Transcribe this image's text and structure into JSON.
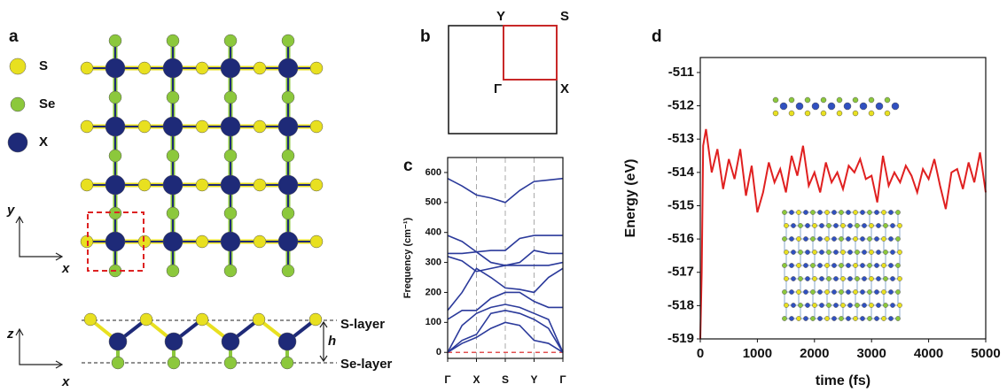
{
  "panel_a": {
    "letter": "a",
    "legend": [
      "S",
      "Se",
      "X"
    ],
    "top_axes": [
      "y",
      "x"
    ],
    "side_axes": [
      "z",
      "x"
    ],
    "layers": [
      "S-layer",
      "Se-layer"
    ],
    "height": "h"
  },
  "panel_b": {
    "letter": "b",
    "points": [
      "Y",
      "S",
      "Γ",
      "X"
    ]
  },
  "chart_data": [
    {
      "type": "line",
      "panel": "c",
      "y_label": "Frequency (cm⁻¹)",
      "x": [
        0,
        0.5,
        1,
        1.5,
        2,
        2.5,
        3,
        3.5,
        4
      ],
      "xlim": [
        0,
        4
      ],
      "xticks": [
        {
          "value": 0,
          "label": "Γ"
        },
        {
          "value": 1,
          "label": "X"
        },
        {
          "value": 2,
          "label": "S"
        },
        {
          "value": 3,
          "label": "Y"
        },
        {
          "value": 4,
          "label": "Γ"
        }
      ],
      "xgrid": true,
      "ylim": [
        -20,
        650
      ],
      "yticks": [
        0,
        100,
        200,
        300,
        400,
        500,
        600
      ],
      "reference_line": {
        "y": 0,
        "color": "#e05050"
      },
      "series": [
        {
          "color": "#2b3a9b",
          "values": [
            580,
            555,
            525,
            515,
            500,
            540,
            570,
            575,
            580
          ]
        },
        {
          "color": "#2b3a9b",
          "values": [
            390,
            370,
            335,
            340,
            340,
            380,
            390,
            390,
            390
          ]
        },
        {
          "color": "#2b3a9b",
          "values": [
            330,
            330,
            335,
            300,
            290,
            300,
            340,
            330,
            330
          ]
        },
        {
          "color": "#2b3a9b",
          "values": [
            320,
            305,
            270,
            280,
            290,
            290,
            290,
            290,
            300
          ]
        },
        {
          "color": "#2b3a9b",
          "values": [
            140,
            200,
            280,
            250,
            215,
            210,
            200,
            250,
            280
          ]
        },
        {
          "color": "#2b3a9b",
          "values": [
            110,
            140,
            140,
            180,
            200,
            200,
            170,
            150,
            150
          ]
        },
        {
          "color": "#2b3a9b",
          "values": [
            0,
            90,
            130,
            150,
            160,
            150,
            130,
            110,
            0
          ]
        },
        {
          "color": "#2b3a9b",
          "values": [
            0,
            40,
            60,
            130,
            140,
            130,
            110,
            80,
            0
          ]
        },
        {
          "color": "#2b3a9b",
          "values": [
            0,
            30,
            50,
            80,
            100,
            90,
            40,
            30,
            0
          ]
        }
      ]
    },
    {
      "type": "line",
      "panel": "d",
      "x_label": "time (fs)",
      "y_label": "Energy (eV)",
      "x": [
        0,
        25,
        50,
        100,
        200,
        300,
        400,
        500,
        600,
        700,
        800,
        900,
        1000,
        1100,
        1200,
        1300,
        1400,
        1500,
        1600,
        1700,
        1800,
        1900,
        2000,
        2100,
        2200,
        2300,
        2400,
        2500,
        2600,
        2700,
        2800,
        2900,
        3000,
        3100,
        3200,
        3300,
        3400,
        3500,
        3600,
        3700,
        3800,
        3900,
        4000,
        4100,
        4200,
        4300,
        4400,
        4500,
        4600,
        4700,
        4800,
        4900,
        5000
      ],
      "xlim": [
        0,
        5000
      ],
      "xticks": [
        0,
        1000,
        2000,
        3000,
        4000,
        5000
      ],
      "ylim": [
        -519,
        -510.55
      ],
      "yticks": [
        -519,
        -518,
        -517,
        -516,
        -515,
        -514,
        -513,
        -512,
        -511
      ],
      "series": [
        {
          "color": "#e02020",
          "values": [
            -519,
            -517,
            -513.2,
            -512.7,
            -514.0,
            -513.3,
            -514.5,
            -513.6,
            -514.2,
            -513.3,
            -514.7,
            -513.8,
            -515.2,
            -514.6,
            -513.7,
            -514.3,
            -513.9,
            -514.6,
            -513.5,
            -514.1,
            -513.2,
            -514.4,
            -514.0,
            -514.6,
            -513.7,
            -514.3,
            -514.0,
            -514.5,
            -513.8,
            -514.0,
            -513.6,
            -514.2,
            -514.1,
            -514.9,
            -513.5,
            -514.4,
            -514.0,
            -514.3,
            -513.8,
            -514.1,
            -514.6,
            -513.9,
            -514.2,
            -513.6,
            -514.4,
            -515.1,
            -514.0,
            -513.9,
            -514.5,
            -513.7,
            -514.3,
            -513.4,
            -514.6
          ]
        }
      ]
    }
  ]
}
